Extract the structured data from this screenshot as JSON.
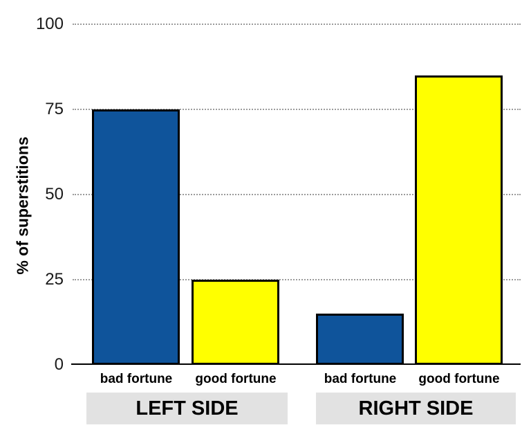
{
  "chart_data": {
    "type": "bar",
    "title": "",
    "ylabel": "% of superstitions",
    "xlabel": "",
    "ylim": [
      0,
      100
    ],
    "yticks": [
      "0",
      "25",
      "50",
      "75",
      "100"
    ],
    "grid": "horizontal-dotted",
    "legend": "none",
    "colors": {
      "bad_fortune_bar": "#0f549b",
      "good_fortune_bar": "#ffff00",
      "bar_outline": "#000000",
      "gridline": "#9b9b9b",
      "axis_line": "#000000",
      "group_box_background": "#e2e2e2",
      "text": "#000000"
    },
    "groups": [
      {
        "label": "LEFT SIDE",
        "bars": [
          {
            "category": "bad fortune",
            "value": 75,
            "color": "#0f549b"
          },
          {
            "category": "good fortune",
            "value": 25,
            "color": "#ffff00"
          }
        ]
      },
      {
        "label": "RIGHT SIDE",
        "bars": [
          {
            "category": "bad fortune",
            "value": 15,
            "color": "#0f549b"
          },
          {
            "category": "good fortune",
            "value": 85,
            "color": "#ffff00"
          }
        ]
      }
    ]
  }
}
